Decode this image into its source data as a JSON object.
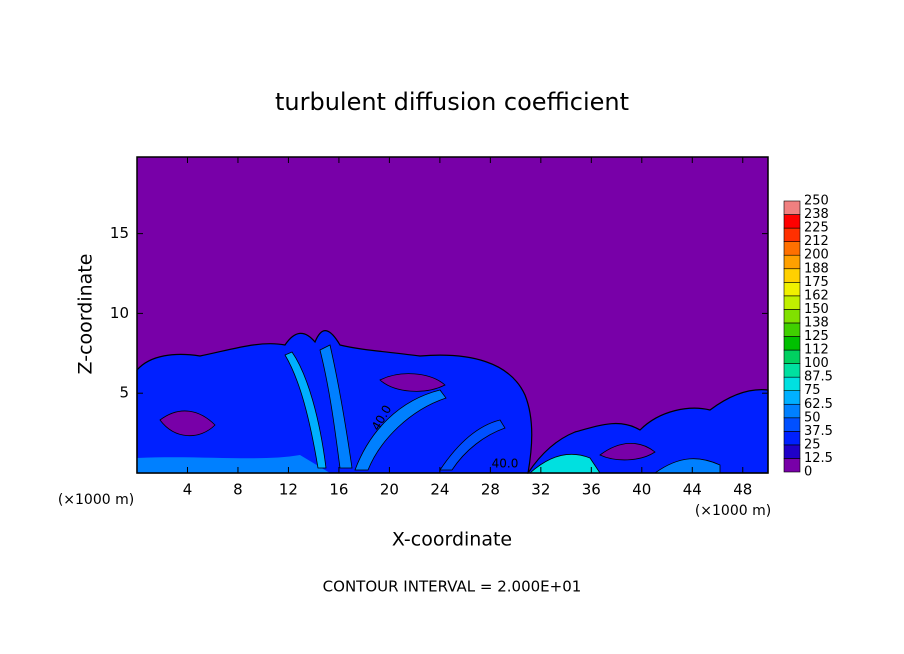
{
  "chart_data": {
    "type": "contour",
    "title": "turbulent diffusion coefficient",
    "x_label": "X-coordinate",
    "y_label": "Z-coordinate",
    "x_unit_label_left": "(×1000 m)",
    "x_unit_label_right": "(×1000 m)",
    "footer": "CONTOUR INTERVAL = 2.000E+01",
    "contour_labels": [
      "40.0",
      "40.0"
    ],
    "xlim": [
      0,
      50
    ],
    "xticks": [
      4,
      8,
      12,
      16,
      20,
      24,
      28,
      32,
      36,
      40,
      44,
      48
    ],
    "ylim": [
      0,
      19.8
    ],
    "yticks": [
      5,
      10,
      15
    ],
    "colorbar": {
      "ticks": [
        0,
        12.5,
        25,
        37.5,
        50,
        62.5,
        75,
        87.5,
        100,
        112,
        125,
        138,
        150,
        162,
        175,
        188,
        200,
        212,
        225,
        238,
        250
      ],
      "colors": [
        "#7800a8",
        "#2000c8",
        "#0020ff",
        "#0050ff",
        "#0080ff",
        "#00b0ff",
        "#00e0e0",
        "#00e0a0",
        "#00d060",
        "#00c000",
        "#40d000",
        "#80e000",
        "#c0f000",
        "#f0f000",
        "#ffd000",
        "#ffa000",
        "#ff7000",
        "#ff3000",
        "#ff0000",
        "#f08080"
      ]
    }
  }
}
